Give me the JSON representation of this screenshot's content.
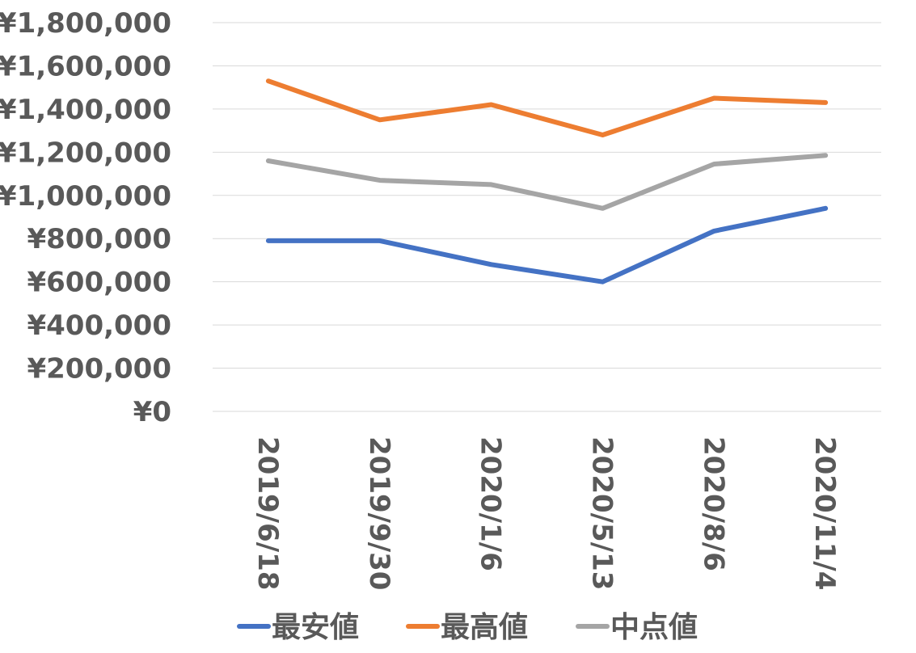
{
  "chart_data": {
    "type": "line",
    "categories": [
      "2019/6/18",
      "2019/9/30",
      "2020/1/6",
      "2020/5/13",
      "2020/8/6",
      "2020/11/4"
    ],
    "series": [
      {
        "name": "最安値",
        "color": "#4472C4",
        "values": [
          790000,
          790000,
          680000,
          600000,
          835000,
          940000
        ]
      },
      {
        "name": "最高値",
        "color": "#ED7D31",
        "values": [
          1530000,
          1350000,
          1420000,
          1280000,
          1450000,
          1430000
        ]
      },
      {
        "name": "中点値",
        "color": "#A5A5A5",
        "values": [
          1160000,
          1070000,
          1050000,
          940000,
          1145000,
          1185000
        ]
      }
    ],
    "yticks": [
      "¥0",
      "¥200,000",
      "¥400,000",
      "¥600,000",
      "¥800,000",
      "¥1,000,000",
      "¥1,200,000",
      "¥1,400,000",
      "¥1,600,000",
      "¥1,800,000"
    ],
    "ylim": [
      0,
      1800000
    ],
    "grid": true,
    "legend_position": "bottom",
    "title": "",
    "xlabel": "",
    "ylabel": ""
  }
}
